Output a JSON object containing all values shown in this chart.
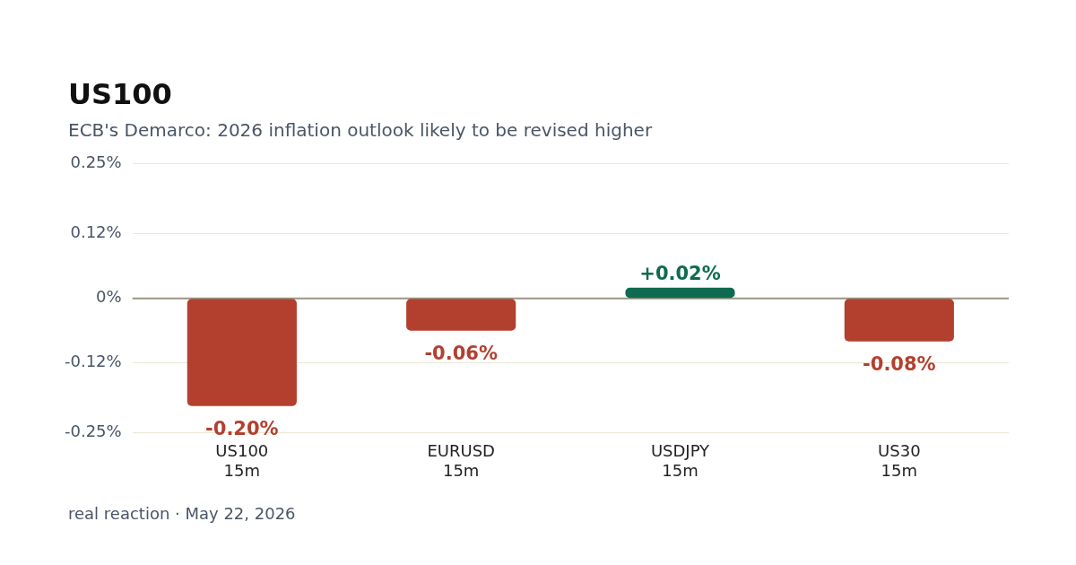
{
  "chart_data": {
    "type": "bar",
    "title": "US100",
    "subtitle": "ECB's Demarco: 2026 inflation outlook likely to be revised higher",
    "categories": [
      "US100\n15m",
      "EURUSD\n15m",
      "USDJPY\n15m",
      "US30\n15m"
    ],
    "values": [
      -0.2,
      -0.06,
      0.02,
      -0.08
    ],
    "colors": [
      "#b3402f",
      "#b3402f",
      "#0e6b4f",
      "#b3402f"
    ],
    "value_labels": [
      "-0.20%",
      "-0.06%",
      "+0.02%",
      "-0.08%"
    ],
    "ylim": [
      -0.25,
      0.25
    ],
    "yticks": [
      {
        "value": -0.25,
        "label": "-0.25%"
      },
      {
        "value": -0.12,
        "label": "-0.12%"
      },
      {
        "value": 0,
        "label": "0%"
      },
      {
        "value": 0.12,
        "label": "0.12%"
      },
      {
        "value": 0.25,
        "label": "0.25%"
      }
    ],
    "grid": "y",
    "ref_lines": [
      {
        "axis": "y",
        "value": 0,
        "color": "#9a9582"
      }
    ],
    "annotations": [
      "real reaction · May 22, 2026"
    ]
  }
}
